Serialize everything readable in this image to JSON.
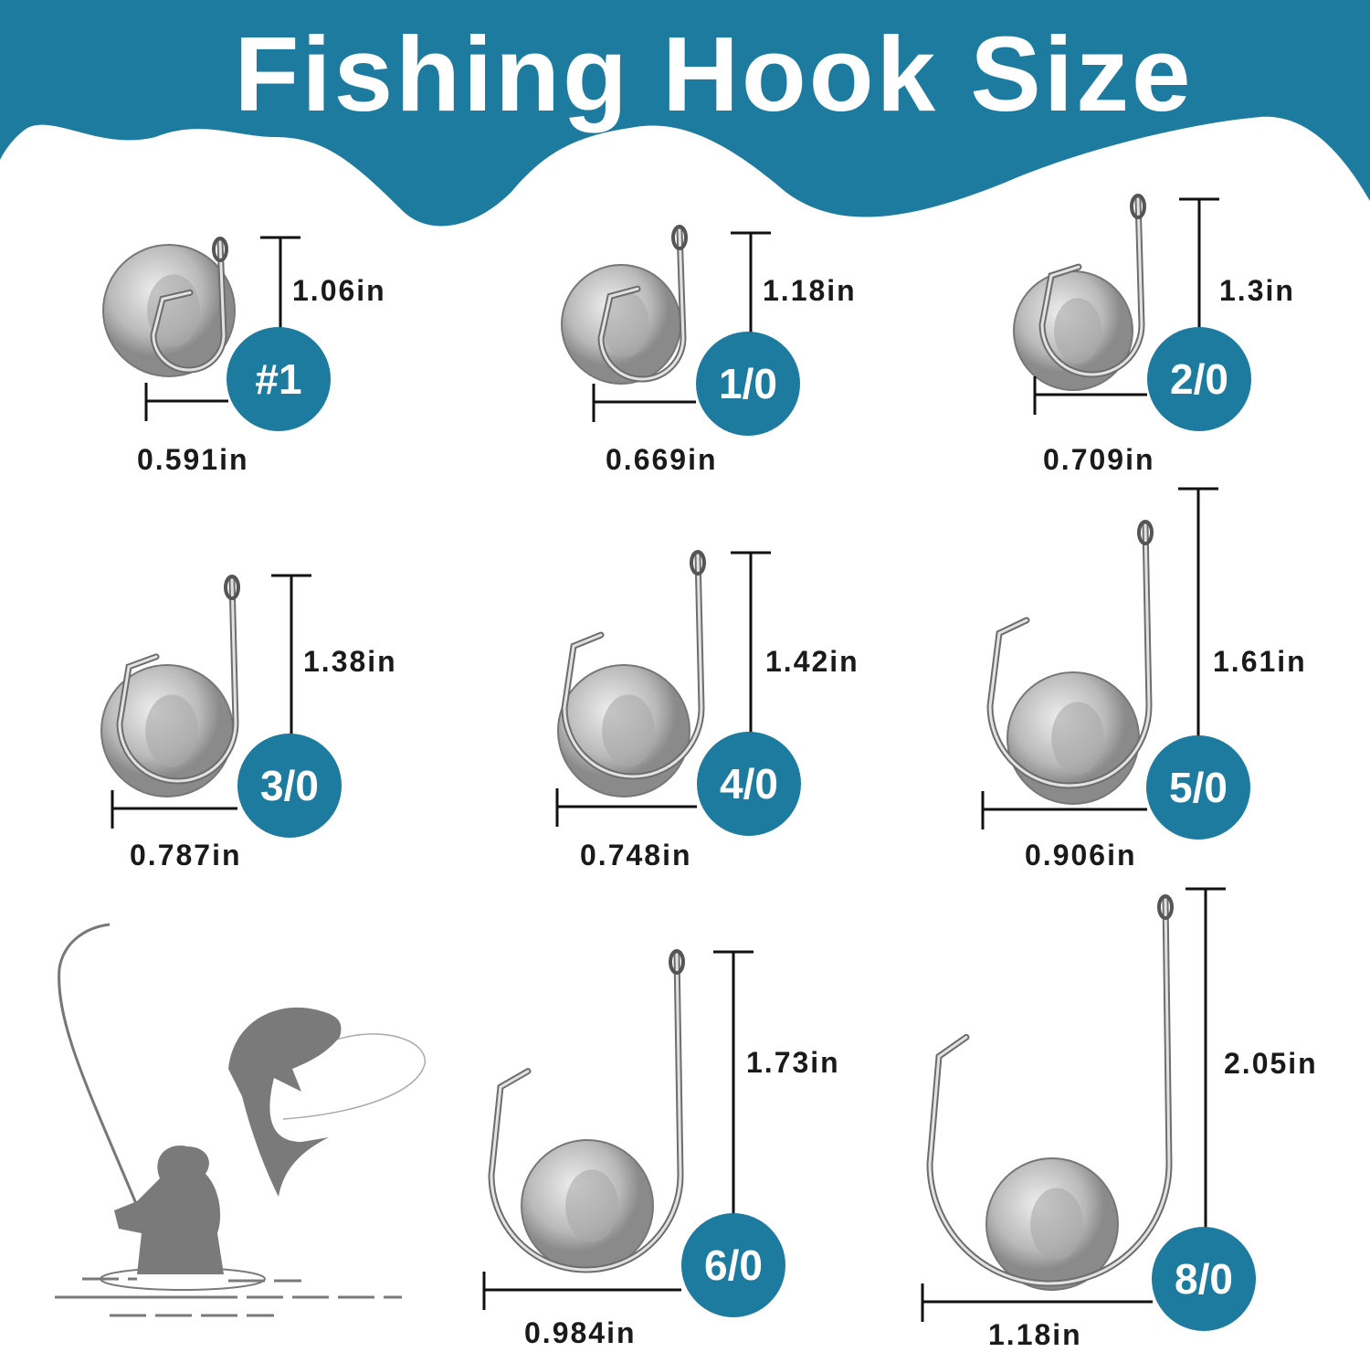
{
  "title": "Fishing Hook Size",
  "colors": {
    "brand": "#1e7ba0",
    "lines": "#111111",
    "silhouette": "#7a7a7a"
  },
  "hooks": [
    {
      "size": "#1",
      "length": "1.06in",
      "width": "0.591in"
    },
    {
      "size": "1/0",
      "length": "1.18in",
      "width": "0.669in"
    },
    {
      "size": "2/0",
      "length": "1.3in",
      "width": "0.709in"
    },
    {
      "size": "3/0",
      "length": "1.38in",
      "width": "0.787in"
    },
    {
      "size": "4/0",
      "length": "1.42in",
      "width": "0.748in"
    },
    {
      "size": "5/0",
      "length": "1.61in",
      "width": "0.906in"
    },
    {
      "size": "6/0",
      "length": "1.73in",
      "width": "0.984in"
    },
    {
      "size": "8/0",
      "length": "2.05in",
      "width": "1.18in"
    }
  ],
  "illustration": "fisherman-catching-fish"
}
